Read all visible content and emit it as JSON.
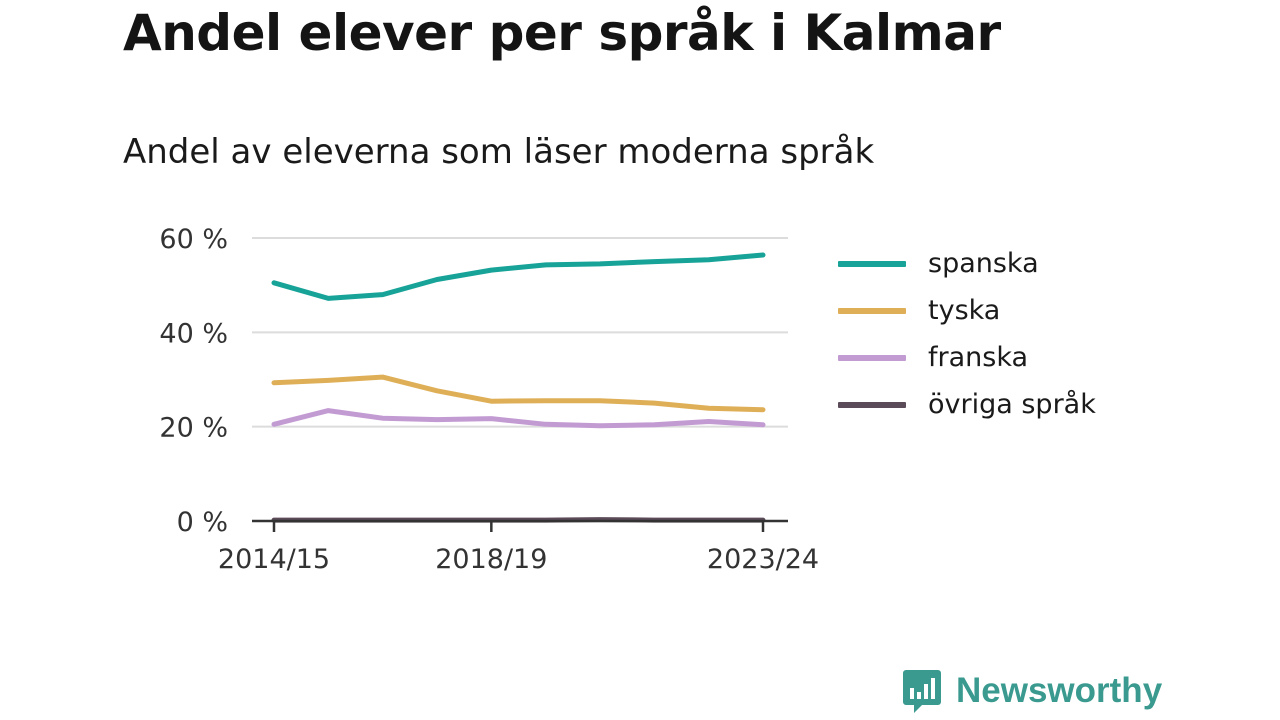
{
  "header": {
    "title": "Andel elever per språk i Kalmar",
    "subtitle": "Andel av eleverna som läser moderna språk"
  },
  "brand": {
    "name": "Newsworthy",
    "icon": "bar-chart-logo-icon",
    "color": "#3a9a8f"
  },
  "chart_data": {
    "type": "line",
    "x": [
      "2014/15",
      "2015/16",
      "2016/17",
      "2017/18",
      "2018/19",
      "2019/20",
      "2020/21",
      "2021/22",
      "2022/23",
      "2023/24"
    ],
    "x_tick_labels": [
      "2014/15",
      "2018/19",
      "2023/24"
    ],
    "y_ticks": [
      0,
      20,
      40,
      60
    ],
    "y_tick_labels": [
      "0 %",
      "20 %",
      "40 %",
      "60 %"
    ],
    "ylim": [
      0,
      60
    ],
    "grid": true,
    "legend_position": "right",
    "series": [
      {
        "name": "spanska",
        "color": "#17a398",
        "values": [
          50.5,
          47.2,
          48,
          51.2,
          53.2,
          54.3,
          54.5,
          55,
          55.4,
          56.4
        ]
      },
      {
        "name": "tyska",
        "color": "#dfaf58",
        "values": [
          29.3,
          29.8,
          30.5,
          27.6,
          25.4,
          25.5,
          25.5,
          25,
          23.9,
          23.6
        ]
      },
      {
        "name": "franska",
        "color": "#c39bd3",
        "values": [
          20.5,
          23.4,
          21.8,
          21.5,
          21.7,
          20.5,
          20.2,
          20.4,
          21.1,
          20.4
        ]
      },
      {
        "name": "övriga språk",
        "color": "#5b4a57",
        "values": [
          0.2,
          0.2,
          0.2,
          0.2,
          0.2,
          0.2,
          0.3,
          0.2,
          0.2,
          0.2
        ]
      }
    ]
  }
}
